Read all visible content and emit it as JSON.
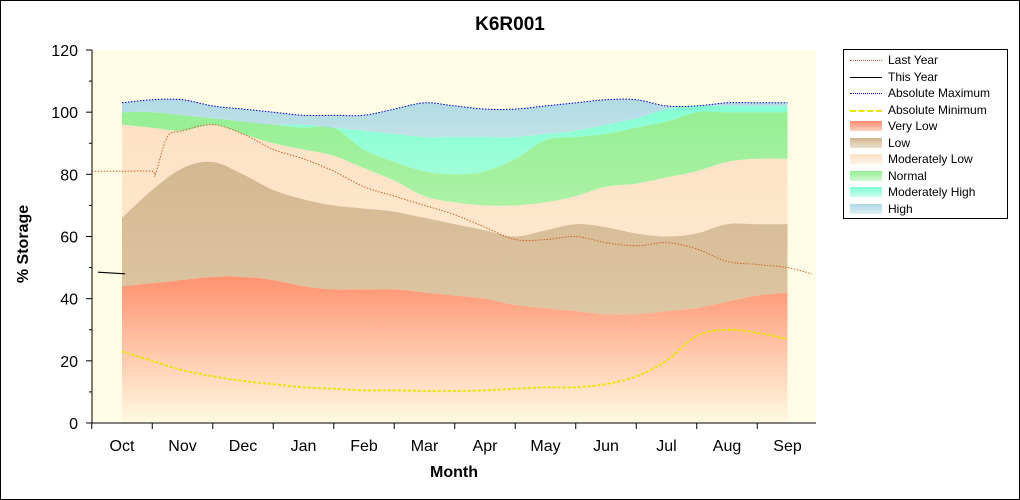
{
  "chart_data": {
    "type": "area",
    "title": "K6R001",
    "xlabel": "Month",
    "ylabel": "% Storage",
    "ylim": [
      0,
      120
    ],
    "yticks": [
      0,
      20,
      40,
      60,
      80,
      100,
      120
    ],
    "categories": [
      "Oct",
      "Nov",
      "Dec",
      "Jan",
      "Feb",
      "Mar",
      "Apr",
      "May",
      "Jun",
      "Jul",
      "Aug",
      "Sep"
    ],
    "x": [
      0,
      0.5,
      1,
      1.5,
      2,
      2.5,
      3,
      3.5,
      4,
      4.5,
      5,
      5.5,
      6,
      6.5,
      7,
      7.5,
      8,
      8.5,
      9,
      9.5,
      10,
      10.5,
      11
    ],
    "grid": false,
    "legend_position": "right",
    "bands": [
      {
        "name": "Very Low",
        "color": "#ff8c69",
        "lower": [
          0,
          0,
          0,
          0,
          0,
          0,
          0,
          0,
          0,
          0,
          0,
          0,
          0,
          0,
          0,
          0,
          0,
          0,
          0,
          0,
          0,
          0,
          0
        ],
        "upper": [
          44,
          45,
          46,
          47,
          47,
          46,
          44,
          43,
          43,
          43,
          42,
          41,
          40,
          38,
          37,
          36,
          35,
          35,
          36,
          37,
          39,
          41,
          42
        ]
      },
      {
        "name": "Low",
        "color": "#d2b48c",
        "lower": [
          44,
          45,
          46,
          47,
          47,
          46,
          44,
          43,
          43,
          43,
          42,
          41,
          40,
          38,
          37,
          36,
          35,
          35,
          36,
          37,
          39,
          41,
          42
        ],
        "upper": [
          66,
          75,
          82,
          84,
          80,
          75,
          72,
          70,
          69,
          68,
          66,
          64,
          62,
          60,
          62,
          64,
          63,
          61,
          60,
          61,
          64,
          64,
          64
        ]
      },
      {
        "name": "Moderately Low",
        "color": "#fde0c4",
        "lower": [
          66,
          75,
          82,
          84,
          80,
          75,
          72,
          70,
          69,
          68,
          66,
          64,
          62,
          60,
          62,
          64,
          63,
          61,
          60,
          61,
          64,
          64,
          64
        ],
        "upper": [
          96,
          95,
          94,
          96,
          93,
          90,
          88,
          86,
          82,
          78,
          73,
          71,
          70,
          70,
          71,
          73,
          76,
          77,
          79,
          81,
          84,
          85,
          85
        ]
      },
      {
        "name": "Normal",
        "color": "#90ee90",
        "lower": [
          96,
          95,
          94,
          96,
          93,
          90,
          88,
          86,
          82,
          78,
          73,
          71,
          70,
          70,
          71,
          73,
          76,
          77,
          79,
          81,
          84,
          85,
          85
        ],
        "upper": [
          100,
          100,
          99,
          98,
          97,
          96,
          95,
          95,
          88,
          84,
          81,
          80,
          81,
          85,
          91,
          92,
          93,
          95,
          97,
          100,
          100,
          100,
          100
        ]
      },
      {
        "name": "Moderately High",
        "color": "#7fffd4",
        "lower": [
          100,
          100,
          99,
          98,
          97,
          96,
          95,
          95,
          88,
          84,
          81,
          80,
          81,
          85,
          91,
          92,
          93,
          95,
          97,
          100,
          100,
          100,
          100
        ],
        "upper": [
          100,
          100,
          99,
          98,
          97,
          96,
          96,
          95,
          94,
          93,
          92,
          92,
          92,
          92,
          93,
          94,
          96,
          98,
          101,
          102,
          102,
          102,
          102
        ]
      },
      {
        "name": "High",
        "color": "#add8e6",
        "lower": [
          100,
          100,
          99,
          98,
          97,
          96,
          96,
          95,
          94,
          93,
          92,
          92,
          92,
          92,
          93,
          94,
          96,
          98,
          101,
          102,
          102,
          102,
          102
        ],
        "upper": [
          103,
          104,
          104,
          102,
          101,
          100,
          99,
          99,
          99,
          101,
          103,
          102,
          101,
          101,
          102,
          103,
          104,
          104,
          102,
          102,
          103,
          103,
          103
        ]
      }
    ],
    "series": [
      {
        "name": "Last Year",
        "color": "#c86428",
        "style": "dotted",
        "x": [
          -0.5,
          0,
          0.5,
          0.55,
          0.75,
          1,
          1.5,
          2,
          2.5,
          3,
          3.5,
          4,
          4.5,
          5,
          5.5,
          6,
          6.5,
          7,
          7.5,
          8,
          8.5,
          9,
          9.5,
          10,
          10.5,
          11,
          11.4
        ],
        "values": [
          81,
          81,
          81,
          80,
          92,
          94,
          96,
          93,
          88,
          85,
          81,
          76,
          73,
          70,
          67,
          63,
          59,
          59,
          60,
          58,
          57,
          58,
          56,
          52,
          51,
          50,
          48
        ]
      },
      {
        "name": "This Year",
        "color": "#000000",
        "style": "solid",
        "x": [
          -0.4,
          0.05
        ],
        "values": [
          48.5,
          48
        ]
      },
      {
        "name": "Absolute Maximum",
        "color": "#0000cc",
        "style": "dotted",
        "x": [
          0,
          0.5,
          1,
          1.5,
          2,
          2.5,
          3,
          3.5,
          4,
          4.5,
          5,
          5.5,
          6,
          6.5,
          7,
          7.5,
          8,
          8.5,
          9,
          9.5,
          10,
          10.5,
          11
        ],
        "values": [
          103,
          104,
          104,
          102,
          101,
          100,
          99,
          99,
          99,
          101,
          103,
          102,
          101,
          101,
          102,
          103,
          104,
          104,
          102,
          102,
          103,
          103,
          103
        ]
      },
      {
        "name": "Absolute Minimum",
        "color": "#e6e600",
        "style": "dashed",
        "x": [
          0,
          0.5,
          1,
          1.5,
          2,
          2.5,
          3,
          3.5,
          4,
          4.5,
          5,
          5.5,
          6,
          6.5,
          7,
          7.5,
          8,
          8.5,
          9,
          9.5,
          10,
          10.5,
          11
        ],
        "values": [
          23,
          20,
          17,
          15,
          13.5,
          12.5,
          11.5,
          11,
          10.5,
          10.5,
          10.3,
          10.3,
          10.5,
          11,
          11.5,
          11.5,
          12.5,
          15,
          20,
          28,
          30,
          29,
          27
        ]
      }
    ],
    "legend": [
      "Last Year",
      "This Year",
      "Absolute Maximum",
      "Absolute Minimum",
      "Very Low",
      "Low",
      "Moderately Low",
      "Normal",
      "Moderately High",
      "High"
    ]
  },
  "legend_items": [
    {
      "label": "Last Year",
      "kind": "line",
      "color": "#c86428",
      "style": "dotted"
    },
    {
      "label": "This Year",
      "kind": "line",
      "color": "#000000",
      "style": "solid"
    },
    {
      "label": "Absolute Maximum",
      "kind": "line",
      "color": "#0000cc",
      "style": "dotted"
    },
    {
      "label": "Absolute Minimum",
      "kind": "line",
      "color": "#e6e600",
      "style": "dashed"
    },
    {
      "label": "Very Low",
      "kind": "fill",
      "color": "#ff8c69"
    },
    {
      "label": "Low",
      "kind": "fill",
      "color": "#d2b48c"
    },
    {
      "label": "Moderately Low",
      "kind": "fill",
      "color": "#fde0c4"
    },
    {
      "label": "Normal",
      "kind": "fill",
      "color": "#90ee90"
    },
    {
      "label": "Moderately High",
      "kind": "fill",
      "color": "#7fffd4"
    },
    {
      "label": "High",
      "kind": "fill",
      "color": "#add8e6"
    }
  ],
  "colors": {
    "plot_background": "#fffde6",
    "frame": "#000000"
  }
}
